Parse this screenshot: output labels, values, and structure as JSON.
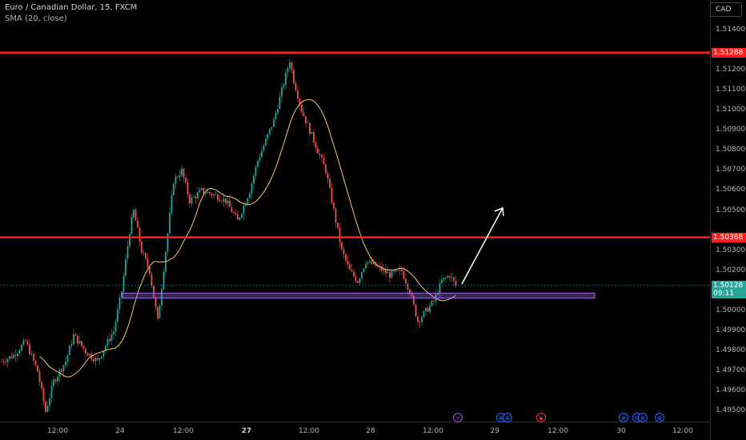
{
  "symbol": {
    "title": "Euro / Canadian Dollar, 15, FXCM",
    "indicator": "SMA (20, close)"
  },
  "currency_button": "CAD",
  "colors": {
    "background": "#000000",
    "up": "#26a69a",
    "down": "#ef5350",
    "sma": "#f5c96b",
    "hline": "#ff1f1f",
    "zone": "#a06be0",
    "arrow": "#ffffff"
  },
  "price_axis": {
    "ticks": [
      "1.51400",
      "1.51200",
      "1.51100",
      "1.51000",
      "1.50900",
      "1.50800",
      "1.50700",
      "1.50600",
      "1.50500",
      "1.50300",
      "1.50200",
      "1.50000",
      "1.49900",
      "1.49800",
      "1.49700",
      "1.49600",
      "1.49500"
    ],
    "tags": [
      {
        "label": "1.51288",
        "color": "#ff1f1f"
      },
      {
        "label": "1.50368",
        "color": "#ff1f1f"
      },
      {
        "label": "1.50128",
        "sublabel": "09:11",
        "color": "#26a69a"
      }
    ]
  },
  "time_axis": {
    "labels": [
      {
        "text": "12:00",
        "bold": false
      },
      {
        "text": "24",
        "bold": false
      },
      {
        "text": "12:00",
        "bold": false
      },
      {
        "text": "27",
        "bold": true
      },
      {
        "text": "12:00",
        "bold": false
      },
      {
        "text": "28",
        "bold": false
      },
      {
        "text": "12:00",
        "bold": false
      },
      {
        "text": "29",
        "bold": false
      },
      {
        "text": "12:00",
        "bold": false
      },
      {
        "text": "30",
        "bold": false
      },
      {
        "text": "12:00",
        "bold": false
      }
    ]
  },
  "chart_data": {
    "type": "candlestick",
    "ylim": [
      1.4945,
      1.5155
    ],
    "horizontal_lines": [
      1.51288,
      1.50368
    ],
    "support_zone": [
      1.50065,
      1.5009
    ],
    "close_path": [
      {
        "i": 0,
        "p": 1.4975
      },
      {
        "i": 6,
        "p": 1.4978
      },
      {
        "i": 12,
        "p": 1.4985
      },
      {
        "i": 18,
        "p": 1.497
      },
      {
        "i": 22,
        "p": 1.495
      },
      {
        "i": 26,
        "p": 1.4965
      },
      {
        "i": 32,
        "p": 1.4975
      },
      {
        "i": 36,
        "p": 1.4988
      },
      {
        "i": 42,
        "p": 1.498
      },
      {
        "i": 48,
        "p": 1.4975
      },
      {
        "i": 52,
        "p": 1.4983
      },
      {
        "i": 56,
        "p": 1.499
      },
      {
        "i": 60,
        "p": 1.501
      },
      {
        "i": 64,
        "p": 1.504
      },
      {
        "i": 66,
        "p": 1.505
      },
      {
        "i": 70,
        "p": 1.503
      },
      {
        "i": 74,
        "p": 1.502
      },
      {
        "i": 78,
        "p": 1.4995
      },
      {
        "i": 82,
        "p": 1.503
      },
      {
        "i": 86,
        "p": 1.5065
      },
      {
        "i": 90,
        "p": 1.507
      },
      {
        "i": 94,
        "p": 1.5055
      },
      {
        "i": 100,
        "p": 1.506
      },
      {
        "i": 106,
        "p": 1.5058
      },
      {
        "i": 112,
        "p": 1.5055
      },
      {
        "i": 118,
        "p": 1.5045
      },
      {
        "i": 124,
        "p": 1.506
      },
      {
        "i": 128,
        "p": 1.5075
      },
      {
        "i": 132,
        "p": 1.5085
      },
      {
        "i": 136,
        "p": 1.5095
      },
      {
        "i": 140,
        "p": 1.511
      },
      {
        "i": 144,
        "p": 1.5125
      },
      {
        "i": 146,
        "p": 1.5115
      },
      {
        "i": 150,
        "p": 1.51
      },
      {
        "i": 154,
        "p": 1.509
      },
      {
        "i": 158,
        "p": 1.508
      },
      {
        "i": 162,
        "p": 1.507
      },
      {
        "i": 166,
        "p": 1.505
      },
      {
        "i": 170,
        "p": 1.503
      },
      {
        "i": 174,
        "p": 1.502
      },
      {
        "i": 178,
        "p": 1.5015
      },
      {
        "i": 182,
        "p": 1.5025
      },
      {
        "i": 188,
        "p": 1.5022
      },
      {
        "i": 194,
        "p": 1.5018
      },
      {
        "i": 200,
        "p": 1.502
      },
      {
        "i": 204,
        "p": 1.501
      },
      {
        "i": 208,
        "p": 1.4995
      },
      {
        "i": 212,
        "p": 1.5
      },
      {
        "i": 216,
        "p": 1.5005
      },
      {
        "i": 220,
        "p": 1.5015
      },
      {
        "i": 224,
        "p": 1.5018
      },
      {
        "i": 227,
        "p": 1.50128
      }
    ],
    "candle_count": 228,
    "x_start": 2,
    "x_step": 2.5
  },
  "events": [
    {
      "symbol": "⚡",
      "color": "#9c4ddb"
    },
    {
      "symbol": "⊕",
      "color": "#2962ff"
    },
    {
      "symbol": "⊕",
      "color": "#2962ff"
    },
    {
      "symbol": "▪",
      "color": "#e53935"
    },
    {
      "symbol": "⊕",
      "color": "#2962ff"
    },
    {
      "symbol": "⊕",
      "color": "#2962ff"
    },
    {
      "symbol": "⊕",
      "color": "#2962ff"
    },
    {
      "symbol": "⊕",
      "color": "#2962ff"
    }
  ]
}
